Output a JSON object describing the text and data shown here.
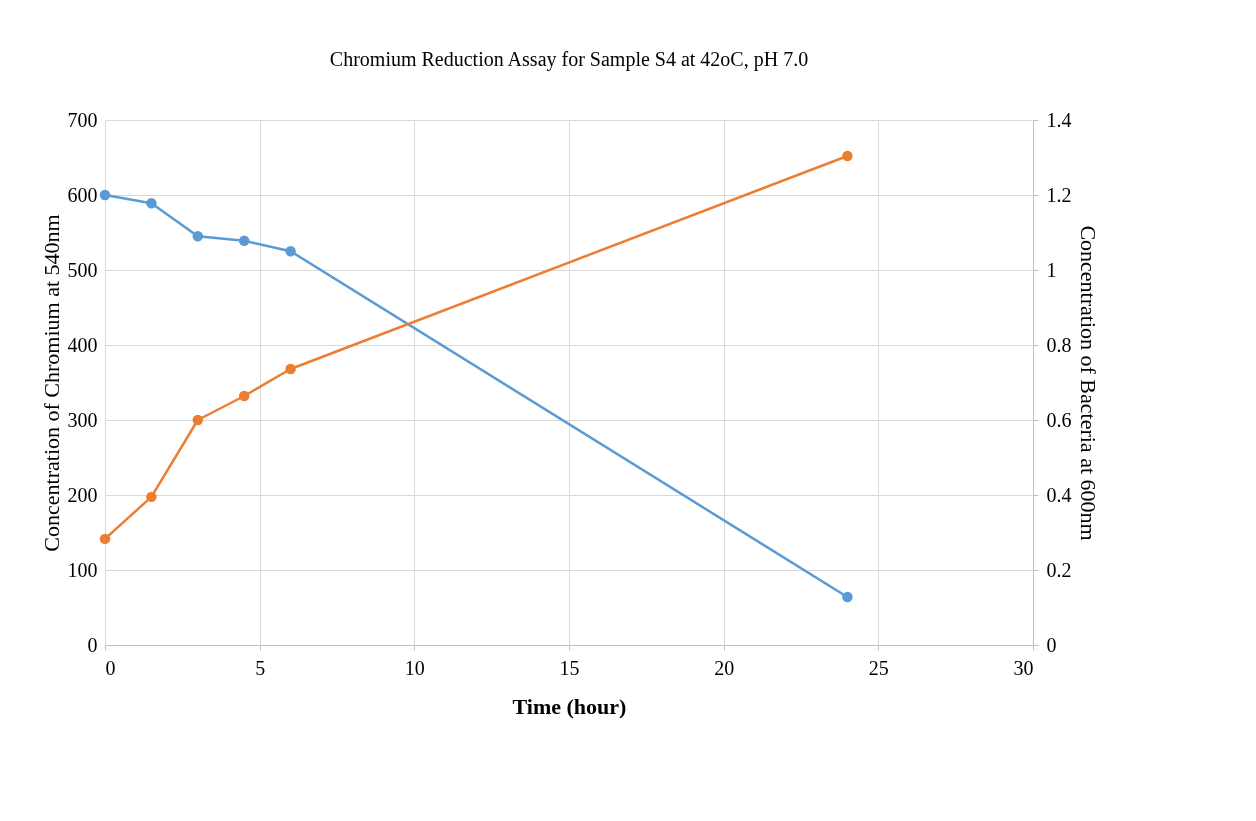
{
  "chart_data": {
    "type": "line",
    "title": "Chromium Reduction Assay for Sample S4 at 42oC, pH 7.0",
    "xlabel": "Time (hour)",
    "ylabel": "Concentration of Chromium at 540nm",
    "y2label": "Concentration of Bacteria at 600nm",
    "x": [
      0,
      1.5,
      3,
      4.5,
      6,
      24
    ],
    "series": [
      {
        "color": "#5b9bd5",
        "values": [
          600,
          589,
          545,
          539,
          525,
          64
        ]
      },
      {
        "color": "#ed7d31",
        "axis": "y2",
        "values": [
          0.283,
          0.395,
          0.6,
          0.664,
          0.736,
          1.304
        ]
      }
    ],
    "xlim": [
      0,
      30
    ],
    "xticks": [
      0,
      5,
      10,
      15,
      20,
      25,
      30
    ],
    "ylim": [
      0,
      700
    ],
    "yticks": [
      0,
      100,
      200,
      300,
      400,
      500,
      600,
      700
    ],
    "y2lim": [
      0,
      1.4
    ],
    "y2ticks": [
      0,
      0.2,
      0.4,
      0.6,
      0.8,
      1,
      1.2,
      1.4
    ],
    "grid": true,
    "marker": "circle",
    "line_style": "solid"
  }
}
